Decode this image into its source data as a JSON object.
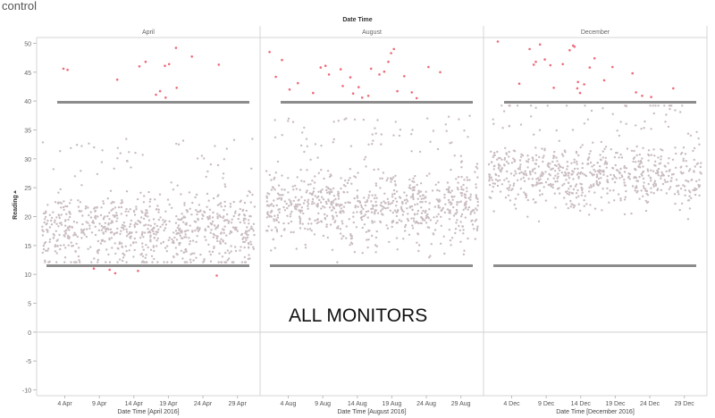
{
  "page": {
    "title": "control",
    "annotation": "ALL MONITORS"
  },
  "colors": {
    "point_normal": "#c9bcc1",
    "point_outlier": "#ee6b7a",
    "control_line": "#8c8c8c",
    "panel_border": "#d6d6d6",
    "zero_line": "#cfcfcf"
  },
  "chart_data": {
    "type": "scatter",
    "title": "",
    "top_axis_title": "Date Time",
    "ylabel": "Reading",
    "ylim": [
      -11,
      51
    ],
    "yticks": [
      50,
      45,
      40,
      35,
      30,
      25,
      20,
      15,
      10,
      5,
      0,
      -5,
      -10
    ],
    "grid": false,
    "control_limits": {
      "upper": 39.8,
      "lower": 11.5
    },
    "panels": [
      {
        "header": "April",
        "xlabel": "Date Time [April 2016]",
        "xticks": [
          "4 Apr",
          "9 Apr",
          "14 Apr",
          "19 Apr",
          "24 Apr",
          "29 Apr"
        ],
        "xtick_days": [
          4,
          9,
          14,
          19,
          24,
          29
        ],
        "day_range": [
          0.7,
          31.5
        ],
        "n_points": 800,
        "mean": 17.5,
        "sd": 3.3,
        "outliers_high": [
          [
            3.8,
            45.6
          ],
          [
            4.4,
            45.4
          ],
          [
            11.6,
            43.7
          ],
          [
            14.8,
            46.0
          ],
          [
            15.7,
            46.8
          ],
          [
            17.2,
            41.1
          ],
          [
            17.8,
            41.7
          ],
          [
            18.5,
            46.1
          ],
          [
            19.1,
            46.4
          ],
          [
            18.6,
            40.6
          ],
          [
            20.2,
            42.3
          ],
          [
            20.1,
            49.2
          ],
          [
            22.4,
            47.7
          ],
          [
            26.3,
            46.3
          ]
        ],
        "outliers_low": [
          [
            8.2,
            11.0
          ],
          [
            10.5,
            10.8
          ],
          [
            11.3,
            10.2
          ],
          [
            14.6,
            10.6
          ],
          [
            26.0,
            9.8
          ]
        ]
      },
      {
        "header": "August",
        "xlabel": "Date Time [August 2016]",
        "xticks": [
          "4 Aug",
          "9 Aug",
          "14 Aug",
          "19 Aug",
          "24 Aug",
          "29 Aug"
        ],
        "xtick_days": [
          4,
          9,
          14,
          19,
          24,
          29
        ],
        "day_range": [
          0.7,
          31.5
        ],
        "n_points": 800,
        "mean": 21.5,
        "sd": 3.2,
        "outliers_high": [
          [
            1.3,
            48.5
          ],
          [
            2.2,
            44.2
          ],
          [
            3.1,
            47.1
          ],
          [
            4.2,
            42.0
          ],
          [
            5.4,
            43.1
          ],
          [
            7.6,
            41.4
          ],
          [
            8.7,
            45.8
          ],
          [
            9.4,
            46.1
          ],
          [
            9.9,
            44.6
          ],
          [
            11.6,
            45.5
          ],
          [
            11.9,
            42.6
          ],
          [
            13.0,
            44.1
          ],
          [
            13.4,
            41.3
          ],
          [
            14.2,
            42.4
          ],
          [
            14.7,
            40.6
          ],
          [
            15.6,
            40.9
          ],
          [
            16.0,
            45.6
          ],
          [
            17.2,
            44.6
          ],
          [
            17.9,
            45.1
          ],
          [
            18.5,
            46.8
          ],
          [
            18.9,
            48.3
          ],
          [
            19.3,
            49.0
          ],
          [
            19.8,
            41.7
          ],
          [
            20.8,
            44.3
          ],
          [
            21.9,
            41.5
          ],
          [
            22.6,
            40.5
          ],
          [
            24.3,
            45.9
          ],
          [
            26.0,
            45.0
          ]
        ],
        "outliers_low": []
      },
      {
        "header": "December",
        "xlabel": "Date Time [December 2016]",
        "xticks": [
          "4 Dec",
          "9 Dec",
          "14 Dec",
          "19 Dec",
          "24 Dec",
          "29 Dec"
        ],
        "xtick_days": [
          4,
          9,
          14,
          19,
          24,
          29
        ],
        "day_range": [
          0.7,
          31.5
        ],
        "n_points": 700,
        "mean": 27.0,
        "sd": 2.8,
        "outliers_high": [
          [
            2.0,
            50.3
          ],
          [
            5.1,
            43.0
          ],
          [
            6.6,
            49.0
          ],
          [
            7.2,
            46.3
          ],
          [
            7.5,
            46.8
          ],
          [
            8.1,
            49.8
          ],
          [
            8.8,
            47.2
          ],
          [
            9.6,
            46.2
          ],
          [
            10.1,
            42.3
          ],
          [
            11.4,
            46.4
          ],
          [
            12.4,
            48.8
          ],
          [
            12.9,
            49.6
          ],
          [
            13.1,
            49.4
          ],
          [
            13.5,
            42.2
          ],
          [
            13.6,
            43.3
          ],
          [
            13.9,
            41.4
          ],
          [
            14.5,
            42.9
          ],
          [
            15.3,
            45.8
          ],
          [
            16.0,
            47.4
          ],
          [
            17.4,
            43.6
          ],
          [
            18.6,
            45.9
          ],
          [
            21.5,
            44.8
          ],
          [
            22.0,
            41.5
          ],
          [
            22.9,
            40.9
          ],
          [
            24.2,
            40.7
          ],
          [
            27.4,
            42.2
          ]
        ],
        "outliers_low": []
      }
    ]
  }
}
